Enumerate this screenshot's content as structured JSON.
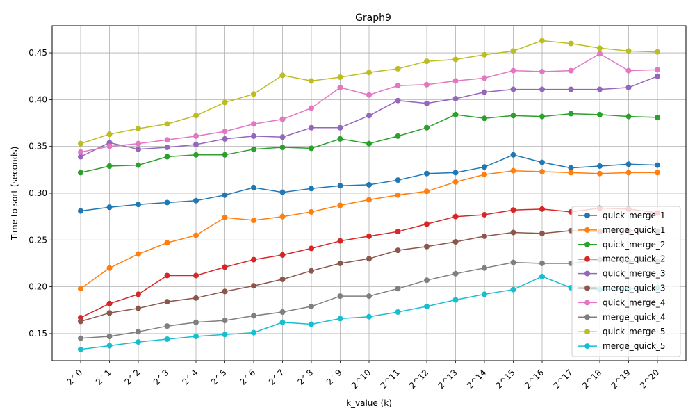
{
  "chart_data": {
    "type": "line",
    "title": "Graph9",
    "xlabel": "k_value (k)",
    "ylabel": "Time to sort (seconds)",
    "categories": [
      "2^0",
      "2^1",
      "2^2",
      "2^3",
      "2^4",
      "2^5",
      "2^6",
      "2^7",
      "2^8",
      "2^9",
      "2^10",
      "2^11",
      "2^12",
      "2^13",
      "2^14",
      "2^15",
      "2^16",
      "2^17",
      "2^18",
      "2^19",
      "2^20"
    ],
    "ylim": [
      0.121,
      0.479
    ],
    "yticks": [
      0.15,
      0.2,
      0.25,
      0.3,
      0.35,
      0.4,
      0.45
    ],
    "ytick_labels": [
      "0.15",
      "0.20",
      "0.25",
      "0.30",
      "0.35",
      "0.40",
      "0.45"
    ],
    "grid": true,
    "legend_position": "lower right",
    "series": [
      {
        "name": "quick_merge_1",
        "color": "#1f77b4",
        "values": [
          0.281,
          0.285,
          0.288,
          0.29,
          0.292,
          0.298,
          0.306,
          0.301,
          0.305,
          0.308,
          0.309,
          0.314,
          0.321,
          0.322,
          0.328,
          0.341,
          0.333,
          0.327,
          0.329,
          0.331,
          0.33
        ]
      },
      {
        "name": "merge_quick_1",
        "color": "#ff7f0e",
        "values": [
          0.198,
          0.22,
          0.235,
          0.247,
          0.255,
          0.274,
          0.271,
          0.275,
          0.28,
          0.287,
          0.293,
          0.298,
          0.302,
          0.312,
          0.32,
          0.324,
          0.323,
          0.322,
          0.321,
          0.322,
          0.322
        ]
      },
      {
        "name": "quick_merge_2",
        "color": "#2ca02c",
        "values": [
          0.322,
          0.329,
          0.33,
          0.339,
          0.341,
          0.341,
          0.347,
          0.349,
          0.348,
          0.358,
          0.353,
          0.361,
          0.37,
          0.384,
          0.38,
          0.383,
          0.382,
          0.385,
          0.384,
          0.382,
          0.381
        ]
      },
      {
        "name": "merge_quick_2",
        "color": "#d62728",
        "values": [
          0.167,
          0.182,
          0.192,
          0.212,
          0.212,
          0.221,
          0.229,
          0.234,
          0.241,
          0.249,
          0.254,
          0.259,
          0.267,
          0.275,
          0.277,
          0.282,
          0.283,
          0.28,
          0.284,
          0.283,
          0.279
        ]
      },
      {
        "name": "quick_merge_3",
        "color": "#9467bd",
        "values": [
          0.339,
          0.354,
          0.347,
          0.349,
          0.352,
          0.358,
          0.361,
          0.36,
          0.37,
          0.37,
          0.383,
          0.399,
          0.396,
          0.401,
          0.408,
          0.411,
          0.411,
          0.411,
          0.411,
          0.413,
          0.425
        ]
      },
      {
        "name": "merge_quick_3",
        "color": "#8c564b",
        "values": [
          0.163,
          0.172,
          0.177,
          0.184,
          0.188,
          0.195,
          0.201,
          0.208,
          0.217,
          0.225,
          0.23,
          0.239,
          0.243,
          0.248,
          0.254,
          0.258,
          0.257,
          0.26,
          0.259,
          0.26,
          0.259
        ]
      },
      {
        "name": "quick_merge_4",
        "color": "#e377c2",
        "values": [
          0.344,
          0.35,
          0.353,
          0.357,
          0.361,
          0.366,
          0.374,
          0.379,
          0.391,
          0.413,
          0.405,
          0.415,
          0.416,
          0.42,
          0.423,
          0.431,
          0.43,
          0.431,
          0.449,
          0.431,
          0.432
        ]
      },
      {
        "name": "merge_quick_4",
        "color": "#7f7f7f",
        "values": [
          0.145,
          0.147,
          0.152,
          0.158,
          0.162,
          0.164,
          0.169,
          0.173,
          0.179,
          0.19,
          0.19,
          0.198,
          0.207,
          0.214,
          0.22,
          0.226,
          0.225,
          0.225,
          0.229,
          0.227,
          0.227
        ]
      },
      {
        "name": "quick_merge_5",
        "color": "#bcbd22",
        "values": [
          0.353,
          0.363,
          0.369,
          0.374,
          0.383,
          0.397,
          0.406,
          0.426,
          0.42,
          0.424,
          0.429,
          0.433,
          0.441,
          0.443,
          0.448,
          0.452,
          0.463,
          0.46,
          0.455,
          0.452,
          0.451
        ]
      },
      {
        "name": "merge_quick_5",
        "color": "#17becf",
        "values": [
          0.133,
          0.137,
          0.141,
          0.144,
          0.147,
          0.149,
          0.151,
          0.162,
          0.16,
          0.166,
          0.168,
          0.173,
          0.179,
          0.186,
          0.192,
          0.197,
          0.211,
          0.199,
          0.197,
          0.198,
          0.199
        ]
      }
    ]
  }
}
